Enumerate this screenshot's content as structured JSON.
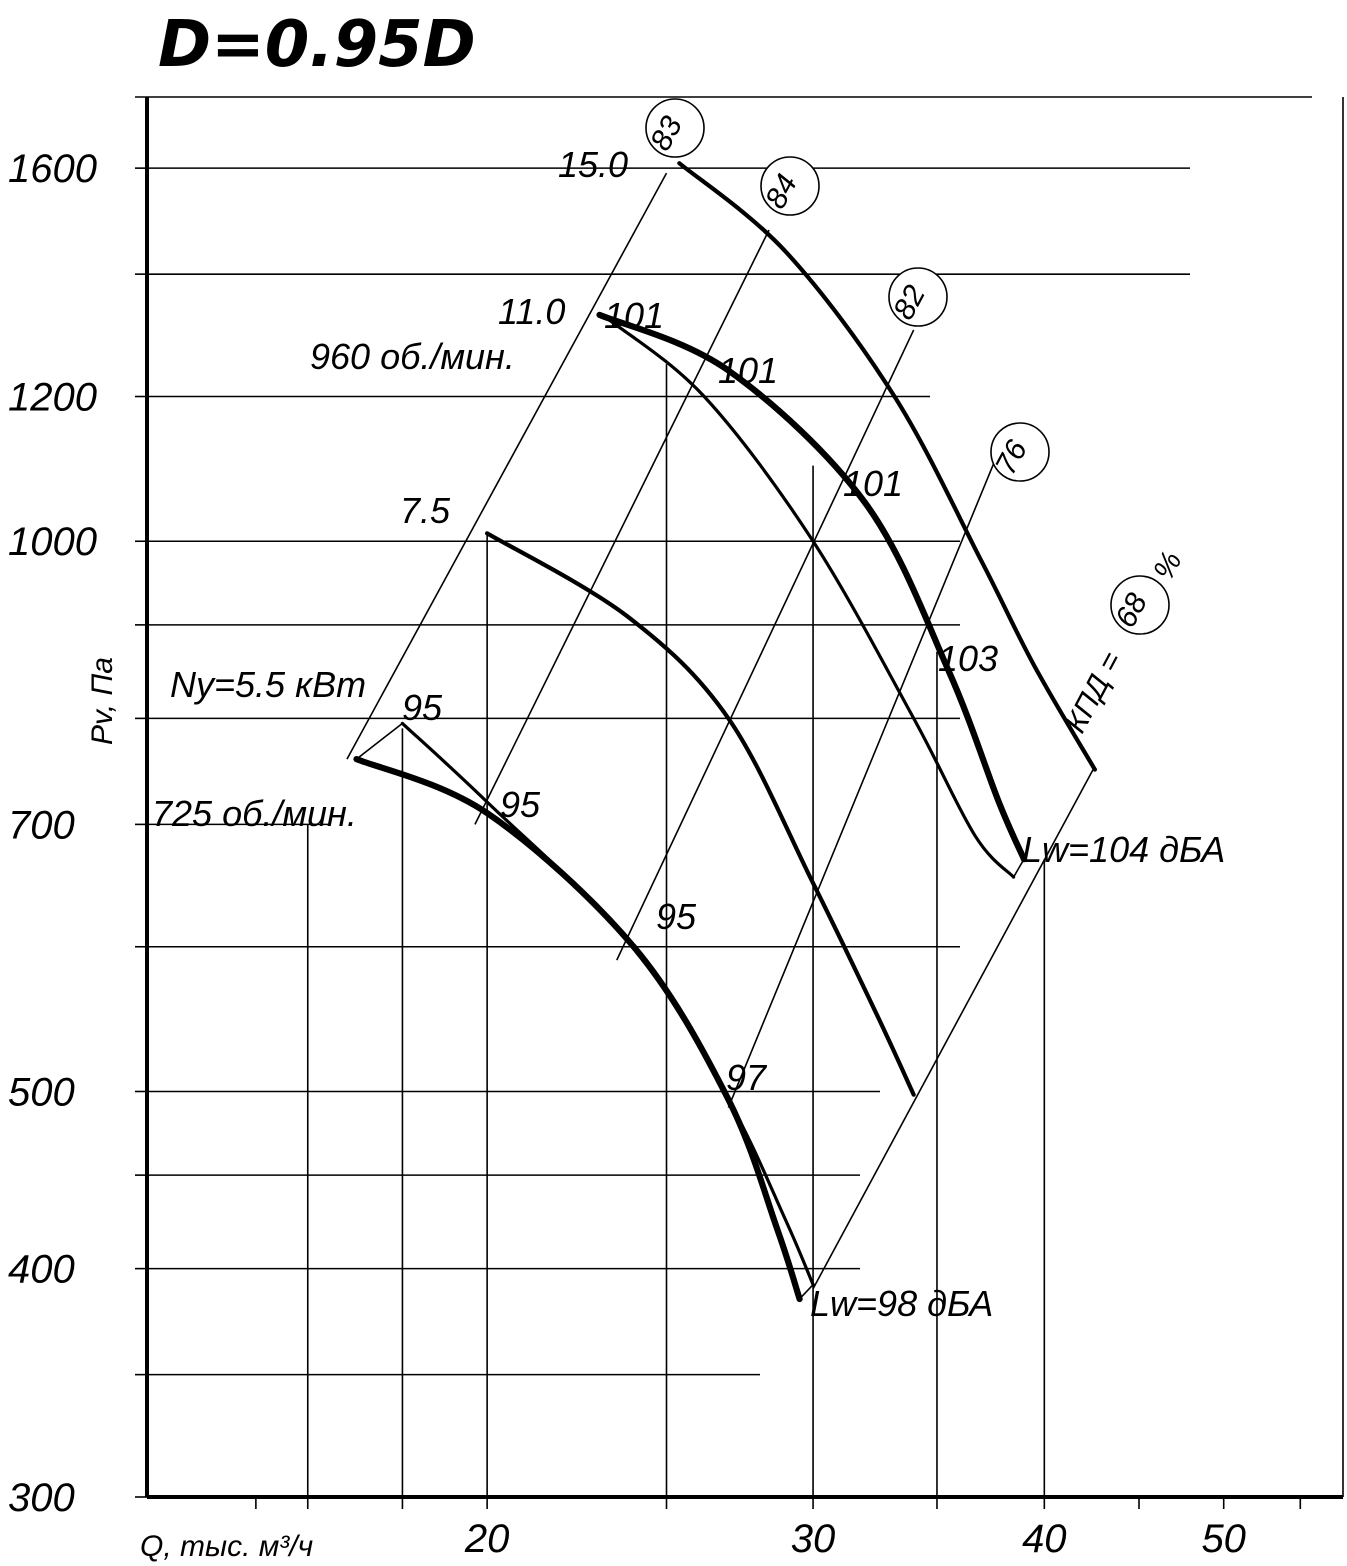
{
  "chart_data": {
    "type": "line",
    "title": "D=0.95D",
    "xlabel": "Q, тыс. м³/ч",
    "ylabel": "Pv, Па",
    "x_scale": "log",
    "y_scale": "log",
    "xlim": [
      13.1,
      58
    ],
    "ylim": [
      300,
      1750
    ],
    "x_ticks": [
      20,
      30,
      40,
      50
    ],
    "y_ticks": [
      1600,
      1200,
      1000,
      700,
      500,
      400,
      300
    ],
    "grid": true,
    "series": [
      {
        "name": "Ny=5.5 кВт",
        "group": "725 об./мин.",
        "weight": "thick",
        "points": [
          [
            17.0,
            760
          ],
          [
            20.0,
            710
          ],
          [
            24.0,
            600
          ],
          [
            27.0,
            495
          ],
          [
            28.7,
            420
          ],
          [
            29.5,
            385
          ]
        ]
      },
      {
        "name": "",
        "group": "725 об./мин.",
        "weight": "thin",
        "points": [
          [
            18.0,
            795
          ],
          [
            20.0,
            720
          ],
          [
            24.0,
            600
          ],
          [
            27.0,
            495
          ],
          [
            29.0,
            425
          ],
          [
            30.0,
            392
          ]
        ]
      },
      {
        "name": "7.5",
        "group": "960 об./мин.",
        "weight": "medium",
        "points": [
          [
            20.0,
            1010
          ],
          [
            23.8,
            910
          ],
          [
            27.0,
            800
          ],
          [
            30.0,
            650
          ],
          [
            32.5,
            550
          ],
          [
            34.0,
            498
          ]
        ]
      },
      {
        "name": "11.0",
        "group": "960 об./мин.",
        "weight": "thick",
        "points": [
          [
            23.0,
            1330
          ],
          [
            27.0,
            1240
          ],
          [
            32.0,
            1050
          ],
          [
            35.5,
            850
          ],
          [
            37.8,
            720
          ],
          [
            39.0,
            670
          ]
        ]
      },
      {
        "name": "",
        "group": "960 об./мин.",
        "weight": "thin",
        "points": [
          [
            23.2,
            1325
          ],
          [
            26.2,
            1200
          ],
          [
            30.0,
            1000
          ],
          [
            34.0,
            800
          ],
          [
            36.7,
            690
          ],
          [
            38.5,
            655
          ]
        ]
      },
      {
        "name": "15.0",
        "group": "960 об./мин.",
        "weight": "medium",
        "points": [
          [
            25.4,
            1610
          ],
          [
            29.0,
            1440
          ],
          [
            33.2,
            1200
          ],
          [
            37.0,
            975
          ],
          [
            39.5,
            855
          ],
          [
            42.6,
            750
          ]
        ]
      }
    ],
    "efficiency_lines": [
      {
        "label": "83",
        "points": [
          [
            16.8,
            760
          ],
          [
            25.0,
            1590
          ]
        ]
      },
      {
        "label": "84",
        "points": [
          [
            19.7,
            700
          ],
          [
            28.4,
            1480
          ]
        ]
      },
      {
        "label": "82",
        "points": [
          [
            23.5,
            590
          ],
          [
            34.0,
            1305
          ]
        ]
      },
      {
        "label": "76",
        "points": [
          [
            27.0,
            490
          ],
          [
            38.0,
            1135
          ]
        ]
      },
      {
        "label": "68",
        "points": [
          [
            30.0,
            390
          ],
          [
            42.5,
            750
          ]
        ]
      }
    ],
    "efficiency_prefix": "КПД =",
    "efficiency_unit": "%",
    "noise_labels": [
      "101",
      "101",
      "101",
      "103",
      "95",
      "95",
      "95",
      "97"
    ],
    "speed_labels": [
      "725 об./мин.",
      "960 об./мин."
    ],
    "lw_labels": [
      "Lw=104 дБА",
      "Lw=98 дБА"
    ]
  }
}
